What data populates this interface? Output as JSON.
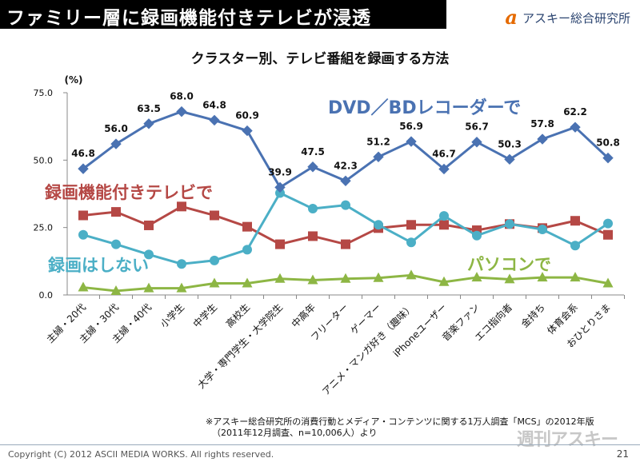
{
  "header": {
    "title": "ファミリー層に録画機能付きテレビが浸透",
    "brand_mark": "a",
    "brand_name": "アスキー総合研究所"
  },
  "chart_data": {
    "type": "line",
    "title": "クラスター別、テレビ番組を録画する方法",
    "ylabel": "(%)",
    "ylim": [
      0,
      75
    ],
    "yticks": [
      "0.0",
      "25.0",
      "50.0",
      "75.0"
    ],
    "categories": [
      "主婦・20代",
      "主婦・30代",
      "主婦・40代",
      "小学生",
      "中学生",
      "高校生",
      "大学・専門学生・大学院生",
      "中高年",
      "フリーター",
      "ゲーマー",
      "アニメ・マンガ好き（趣味）",
      "iPhoneユーザー",
      "音楽ファン",
      "エコ指向者",
      "金持ち",
      "体育会系",
      "おひとりさま"
    ],
    "series": [
      {
        "name": "DVD／BDレコーダーで",
        "color": "#4a72b2",
        "marker": "diamond",
        "values": [
          46.8,
          56.0,
          63.5,
          68.0,
          64.8,
          60.9,
          39.9,
          47.5,
          42.3,
          51.2,
          56.9,
          46.7,
          56.7,
          50.3,
          57.8,
          62.2,
          50.8
        ],
        "labels": [
          "46.8",
          "56.0",
          "63.5",
          "68.0",
          "64.8",
          "60.9",
          "39.9",
          "47.5",
          "42.3",
          "51.2",
          "56.9",
          "46.7",
          "56.7",
          "50.3",
          "57.8",
          "62.2",
          "50.8"
        ]
      },
      {
        "name": "録画機能付きテレビで",
        "color": "#b54845",
        "marker": "square",
        "values": [
          29.5,
          30.8,
          25.8,
          32.8,
          29.5,
          25.3,
          18.8,
          21.8,
          18.8,
          24.8,
          26.0,
          26.0,
          24.0,
          26.3,
          24.8,
          27.5,
          22.3
        ]
      },
      {
        "name": "録画はしない",
        "color": "#4bafc6",
        "marker": "circle",
        "values": [
          22.3,
          18.8,
          15.0,
          11.5,
          12.8,
          16.8,
          37.8,
          32.0,
          33.3,
          26.0,
          19.5,
          29.3,
          22.0,
          26.3,
          24.3,
          18.3,
          26.5
        ]
      },
      {
        "name": "パソコンで",
        "color": "#8db644",
        "marker": "triangle",
        "values": [
          2.8,
          1.5,
          2.5,
          2.5,
          4.3,
          4.3,
          6.0,
          5.5,
          6.0,
          6.3,
          7.3,
          4.8,
          6.5,
          5.8,
          6.5,
          6.5,
          4.3
        ]
      }
    ]
  },
  "footnote": {
    "line1": "※アスキー総合研究所の消費行動とメディア・コンテンツに関する1万人調査「MCS」の2012年版",
    "line2": "（2011年12月調査、n=10,006人）より"
  },
  "footer": {
    "copyright": "Copyright (C) 2012 ASCII MEDIA WORKS. All rights reserved.",
    "page_number": "21"
  },
  "watermark": "週刊アスキー",
  "colors": {
    "header_bg": "#000000",
    "brand": "#2b4470",
    "brand_mark": "#e56a00",
    "axis": "#888888"
  }
}
